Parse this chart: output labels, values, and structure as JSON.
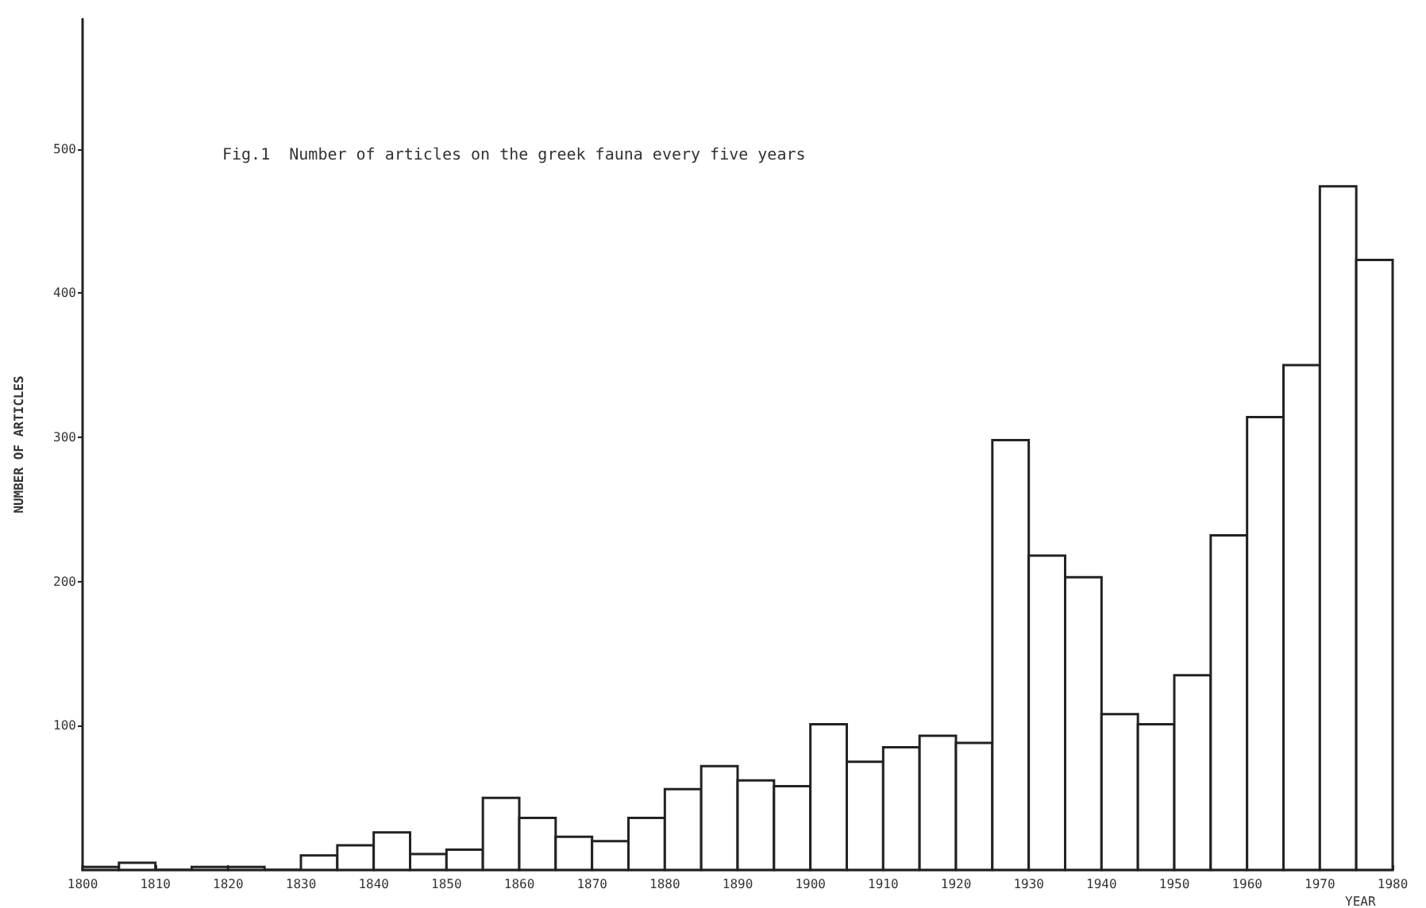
{
  "chart_data": {
    "type": "histogram",
    "title": "Fig.1  Number of articles on the greek fauna every five years",
    "xlabel": "YEAR",
    "ylabel": "NUMBER OF ARTICLES",
    "bins": [
      1800,
      1805,
      1810,
      1815,
      1820,
      1825,
      1830,
      1835,
      1840,
      1845,
      1850,
      1855,
      1860,
      1865,
      1870,
      1875,
      1880,
      1885,
      1890,
      1895,
      1900,
      1905,
      1910,
      1915,
      1920,
      1925,
      1930,
      1935,
      1940,
      1945,
      1950,
      1955,
      1960,
      1965,
      1970,
      1975,
      1980
    ],
    "values": [
      2,
      5,
      0,
      2,
      2,
      0,
      10,
      17,
      26,
      11,
      14,
      50,
      36,
      23,
      20,
      36,
      56,
      72,
      62,
      58,
      101,
      75,
      85,
      93,
      88,
      298,
      218,
      203,
      108,
      101,
      135,
      232,
      314,
      350,
      474,
      423
    ],
    "color": "#ffffff",
    "xlim": [
      1800,
      1980
    ],
    "xticks": [
      1800,
      1810,
      1820,
      1830,
      1840,
      1850,
      1860,
      1870,
      1880,
      1890,
      1900,
      1910,
      1920,
      1930,
      1940,
      1950,
      1960,
      1970,
      1980
    ],
    "ylim": [
      0,
      590
    ],
    "yticks": [
      100,
      200,
      300,
      400,
      500
    ]
  }
}
